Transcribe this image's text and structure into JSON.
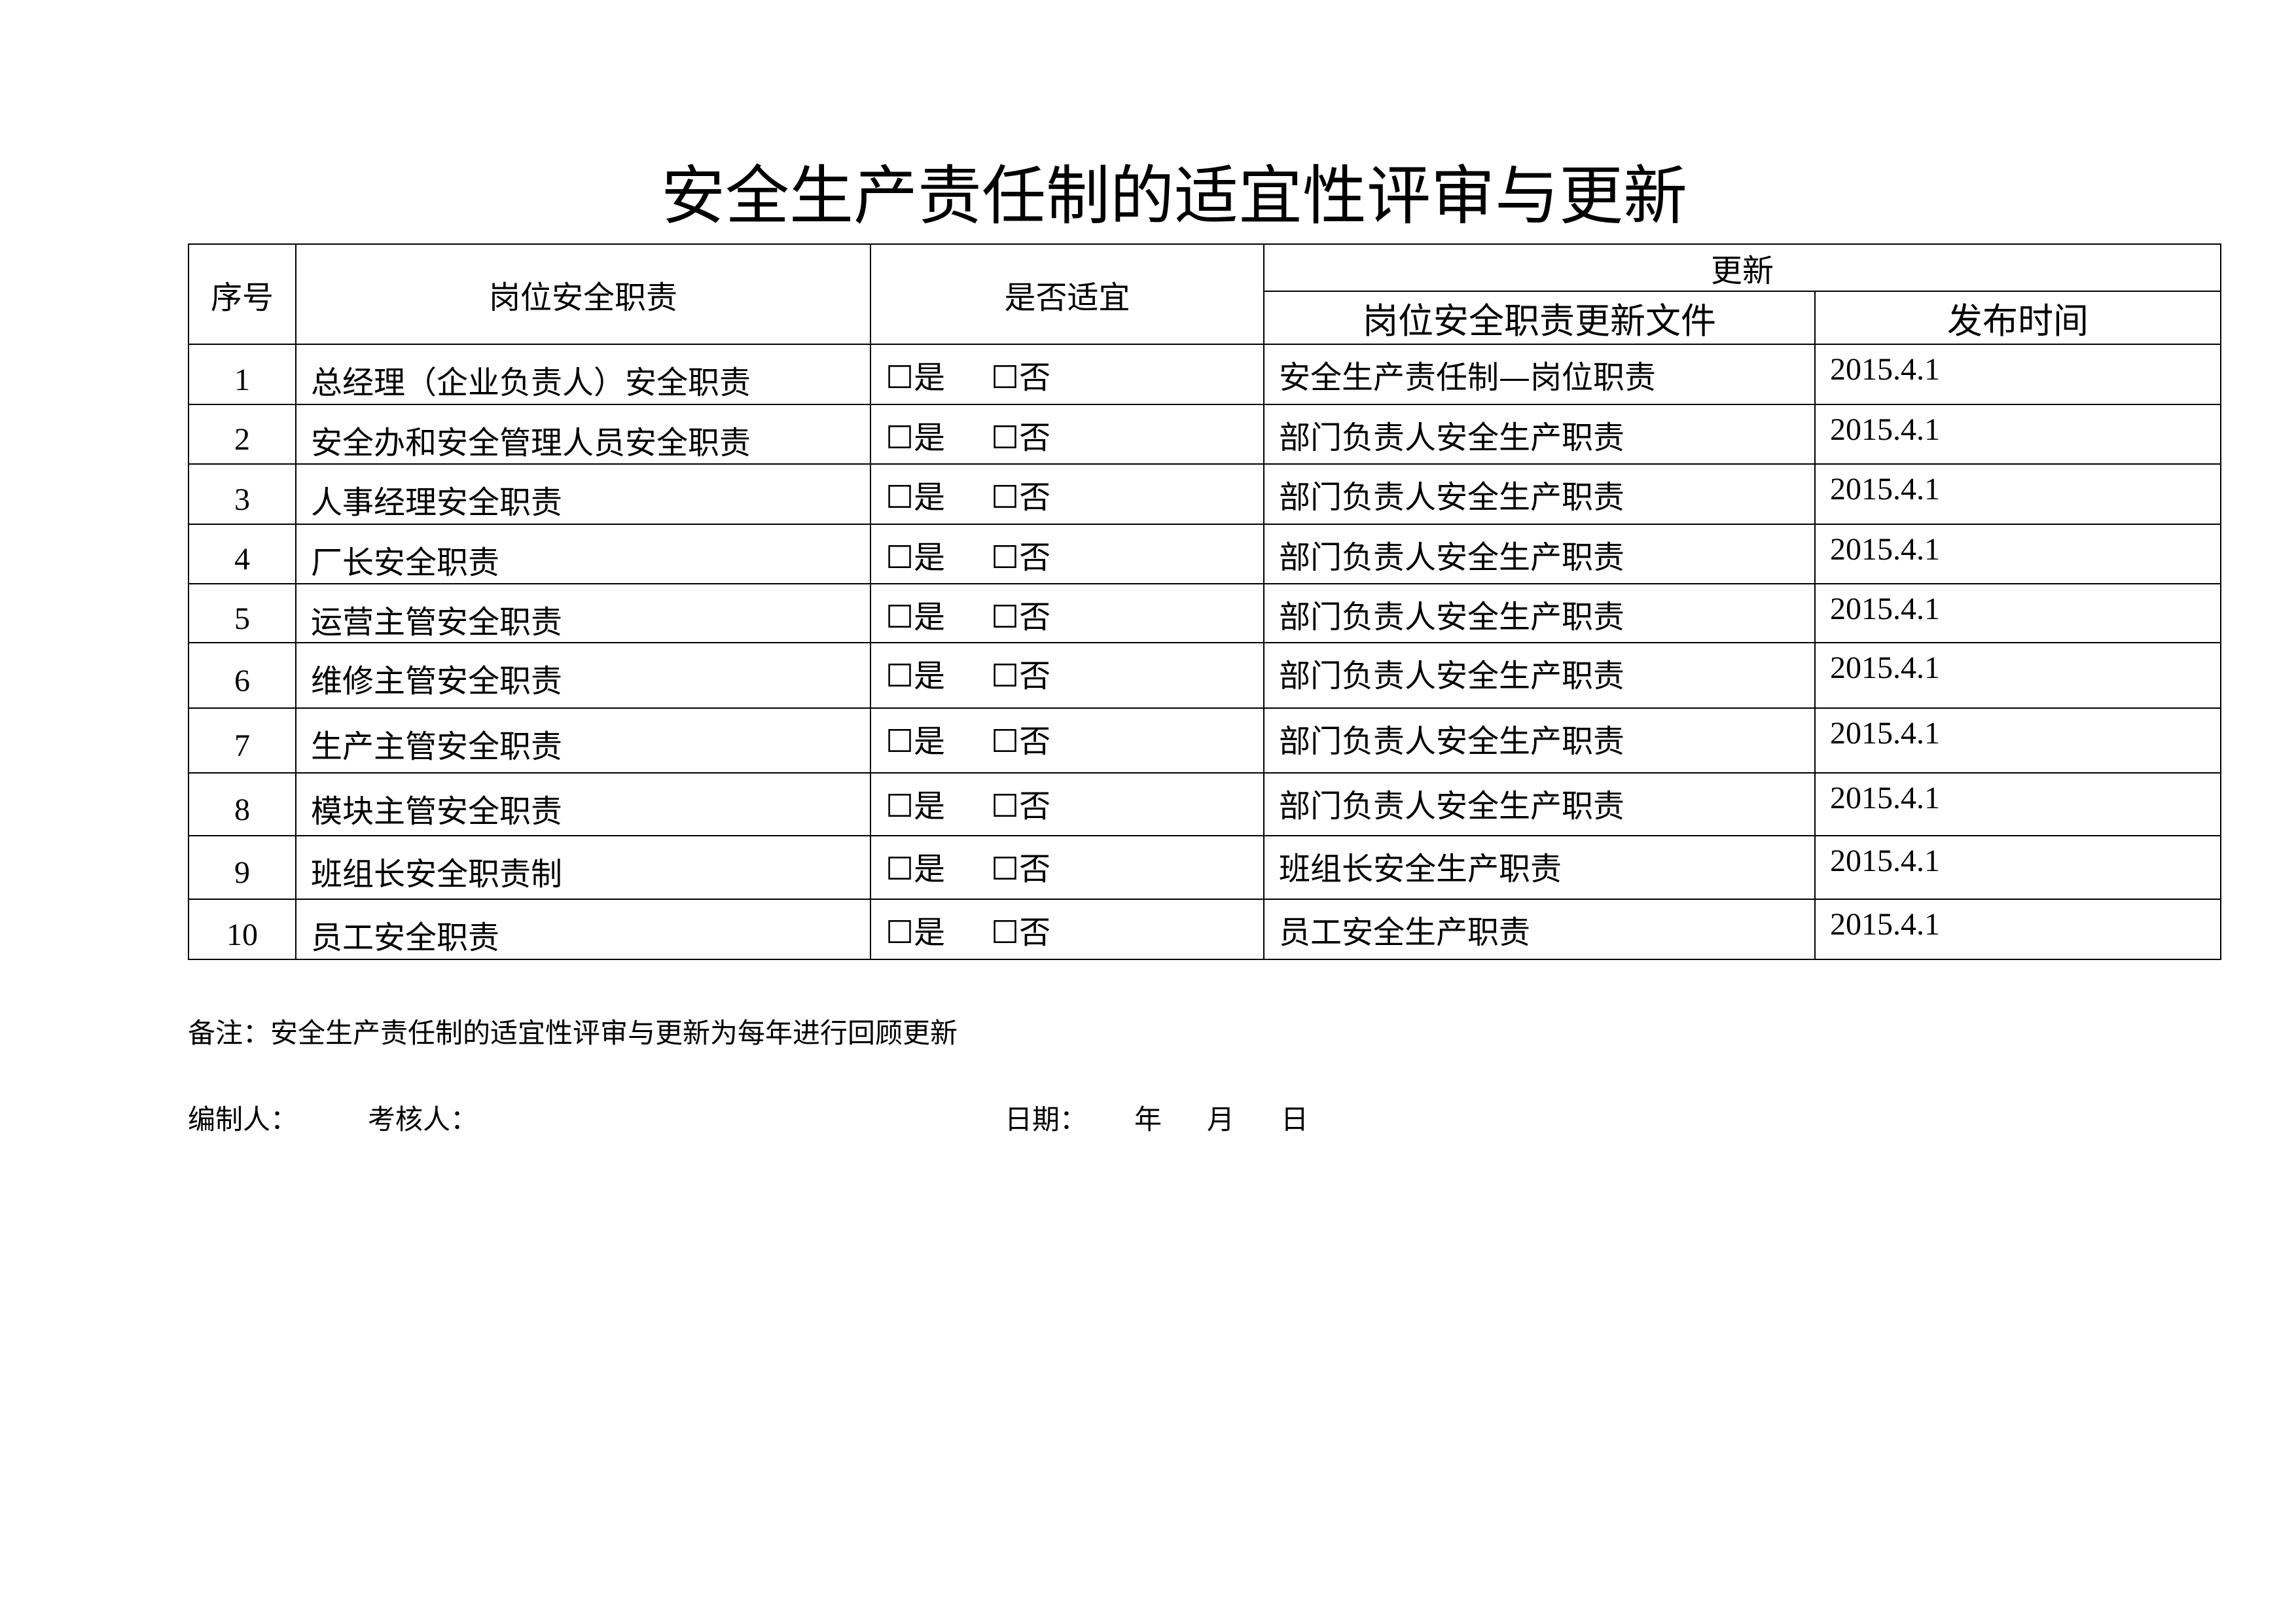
{
  "title": "安全生产责任制的适宜性评审与更新",
  "table": {
    "headers": {
      "seq": "序号",
      "duty": "岗位安全职责",
      "suitable": "是否适宜",
      "update": "更新",
      "update_file": "岗位安全职责更新文件",
      "publish_date": "发布时间"
    },
    "options": {
      "yes": "☐是",
      "no": "☐否"
    },
    "rows": [
      {
        "seq": "1",
        "duty": "总经理（企业负责人）安全职责",
        "file": "安全生产责任制—岗位职责",
        "date": "2015.4.1"
      },
      {
        "seq": "2",
        "duty": "安全办和安全管理人员安全职责",
        "file": "部门负责人安全生产职责",
        "date": "2015.4.1"
      },
      {
        "seq": "3",
        "duty": "人事经理安全职责",
        "file": "部门负责人安全生产职责",
        "date": "2015.4.1"
      },
      {
        "seq": "4",
        "duty": "厂长安全职责",
        "file": "部门负责人安全生产职责",
        "date": "2015.4.1"
      },
      {
        "seq": "5",
        "duty": "运营主管安全职责",
        "file": "部门负责人安全生产职责",
        "date": "2015.4.1"
      },
      {
        "seq": "6",
        "duty": "维修主管安全职责",
        "file": "部门负责人安全生产职责",
        "date": "2015.4.1"
      },
      {
        "seq": "7",
        "duty": "生产主管安全职责",
        "file": "部门负责人安全生产职责",
        "date": "2015.4.1"
      },
      {
        "seq": "8",
        "duty": "模块主管安全职责",
        "file": "部门负责人安全生产职责",
        "date": "2015.4.1"
      },
      {
        "seq": "9",
        "duty": "班组长安全职责制",
        "file": "班组长安全生产职责",
        "date": "2015.4.1"
      },
      {
        "seq": "10",
        "duty": "员工安全职责",
        "file": "员工安全生产职责",
        "date": "2015.4.1"
      }
    ]
  },
  "note": "备注：安全生产责任制的适宜性评审与更新为每年进行回顾更新",
  "footer": {
    "compiler": "编制人：",
    "reviewer": "考核人：",
    "date_label": "日期：",
    "year": "年",
    "month": "月",
    "day": "日"
  }
}
